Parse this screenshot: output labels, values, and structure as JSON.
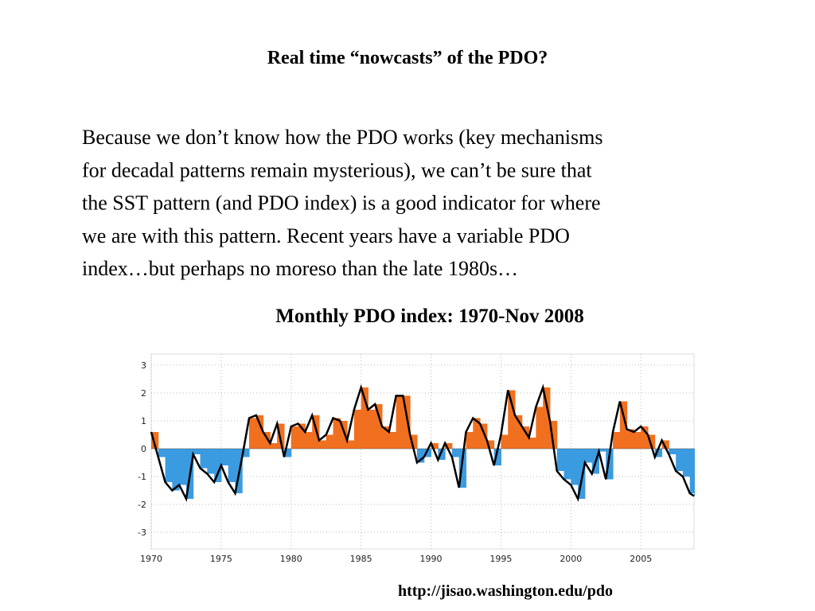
{
  "title": "Real time “nowcasts” of the PDO?",
  "body": [
    "Because we don’t know how the PDO works (key mechanisms",
    "for decadal patterns remain mysterious), we can’t be sure that",
    "the SST pattern (and PDO index) is a good indicator for where",
    "we are with this pattern. Recent years have a variable PDO",
    "index…but perhaps no moreso than the late 1980s…"
  ],
  "source": "http://jisao.washington.edu/pdo",
  "chart_data": {
    "type": "area",
    "title": "Monthly PDO index: 1970-Nov 2008",
    "x": [
      1970.0,
      1970.5,
      1971.0,
      1971.5,
      1972.0,
      1972.5,
      1973.0,
      1973.5,
      1974.0,
      1974.5,
      1975.0,
      1975.5,
      1976.0,
      1976.5,
      1977.0,
      1977.5,
      1978.0,
      1978.5,
      1979.0,
      1979.5,
      1980.0,
      1980.5,
      1981.0,
      1981.5,
      1982.0,
      1982.5,
      1983.0,
      1983.5,
      1984.0,
      1984.5,
      1985.0,
      1985.5,
      1986.0,
      1986.5,
      1987.0,
      1987.5,
      1988.0,
      1988.5,
      1989.0,
      1989.5,
      1990.0,
      1990.5,
      1991.0,
      1991.5,
      1992.0,
      1992.5,
      1993.0,
      1993.5,
      1994.0,
      1994.5,
      1995.0,
      1995.5,
      1996.0,
      1996.5,
      1997.0,
      1997.5,
      1998.0,
      1998.5,
      1999.0,
      1999.5,
      2000.0,
      2000.5,
      2001.0,
      2001.5,
      2002.0,
      2002.5,
      2003.0,
      2003.5,
      2004.0,
      2004.5,
      2005.0,
      2005.5,
      2006.0,
      2006.5,
      2007.0,
      2007.5,
      2008.0,
      2008.5,
      2008.8
    ],
    "values": [
      0.6,
      -0.3,
      -1.2,
      -1.5,
      -1.3,
      -1.8,
      -0.2,
      -0.7,
      -0.9,
      -1.2,
      -0.6,
      -1.2,
      -1.6,
      -0.3,
      1.1,
      1.2,
      0.6,
      0.2,
      0.9,
      -0.3,
      0.8,
      0.9,
      0.6,
      1.2,
      0.3,
      0.5,
      1.1,
      1.0,
      0.3,
      1.4,
      2.2,
      1.4,
      1.6,
      0.8,
      0.6,
      1.9,
      1.9,
      0.5,
      -0.5,
      -0.3,
      0.2,
      -0.4,
      0.2,
      -0.3,
      -1.4,
      0.6,
      1.1,
      0.9,
      0.3,
      -0.6,
      0.5,
      2.1,
      1.2,
      0.8,
      0.4,
      1.5,
      2.2,
      1.0,
      -0.8,
      -1.1,
      -1.3,
      -1.8,
      -0.5,
      -0.9,
      -0.1,
      -1.1,
      0.6,
      1.7,
      0.7,
      0.6,
      0.8,
      0.5,
      -0.3,
      0.3,
      -0.2,
      -0.8,
      -1.0,
      -1.6,
      -1.7
    ],
    "positive_color": "#f07020",
    "negative_color": "#3b9be0",
    "line_color": "#000000",
    "xlim": [
      1970,
      2008.8
    ],
    "ylim": [
      -3.6,
      3.4
    ],
    "xticks": [
      1970,
      1975,
      1980,
      1985,
      1990,
      1995,
      2000,
      2005
    ],
    "yticks": [
      -3,
      -2,
      -1,
      0,
      1,
      2,
      3
    ],
    "grid": true
  }
}
